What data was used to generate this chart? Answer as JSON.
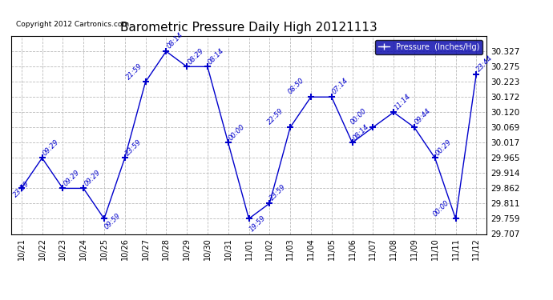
{
  "title": "Barometric Pressure Daily High 20121113",
  "copyright": "Copyright 2012 Cartronics.com",
  "legend_label": "Pressure  (Inches/Hg)",
  "x_labels": [
    "10/21",
    "10/22",
    "10/23",
    "10/24",
    "10/25",
    "10/26",
    "10/27",
    "10/28",
    "10/29",
    "10/30",
    "10/31",
    "11/01",
    "11/02",
    "11/03",
    "11/04",
    "11/05",
    "11/06",
    "11/07",
    "11/08",
    "11/09",
    "11/10",
    "11/11",
    "11/12"
  ],
  "y_values": [
    29.862,
    29.965,
    29.862,
    29.862,
    29.759,
    29.965,
    30.223,
    30.327,
    30.275,
    30.275,
    30.017,
    29.759,
    29.811,
    30.069,
    30.172,
    30.172,
    30.017,
    30.069,
    30.12,
    30.069,
    29.965,
    29.759,
    30.25
  ],
  "point_labels": [
    "23:59",
    "09:29",
    "09:29",
    "09:29",
    "09:59",
    "23:59",
    "21:59",
    "08:14",
    "08:29",
    "08:14",
    "00:00",
    "19:59",
    "23:59",
    "22:59",
    "08:50",
    "07:14",
    "08:14",
    "00:00",
    "11:14",
    "09:44",
    "00:29",
    "00:00",
    "23:44"
  ],
  "line_color": "#0000CC",
  "marker_color": "#0000CC",
  "label_color": "#0000CC",
  "bg_color": "#ffffff",
  "grid_color": "#bbbbbb",
  "ylim_min": 29.707,
  "ylim_max": 30.379,
  "yticks": [
    29.707,
    29.759,
    29.811,
    29.862,
    29.914,
    29.965,
    30.017,
    30.069,
    30.12,
    30.172,
    30.223,
    30.275,
    30.327
  ],
  "legend_bg": "#0000AA",
  "legend_text_color": "#ffffff"
}
